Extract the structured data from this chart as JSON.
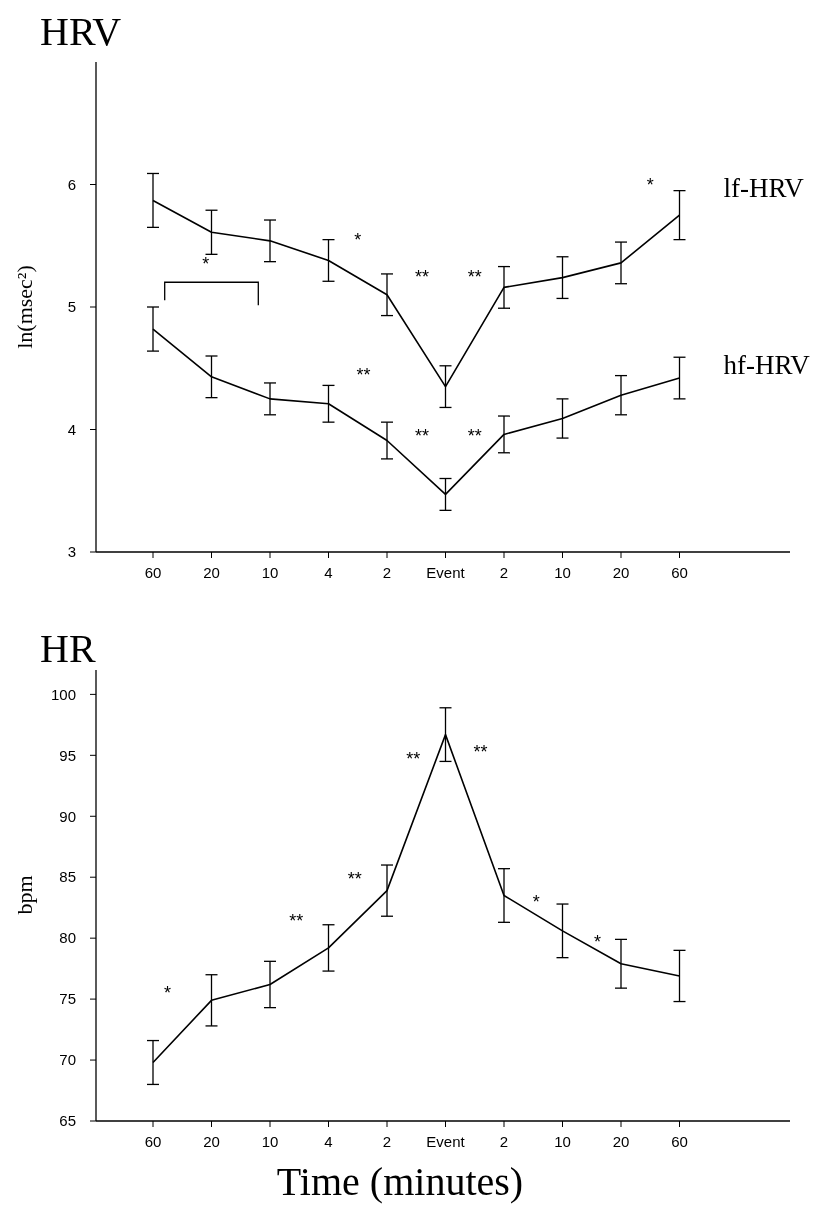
{
  "chart_data": [
    {
      "type": "line",
      "title": "HRV",
      "ylabel": "ln(msec²)",
      "categories": [
        "60",
        "20",
        "10",
        "4",
        "2",
        "Event",
        "2",
        "10",
        "20",
        "60"
      ],
      "ylim": [
        3,
        7
      ],
      "yticks": [
        3,
        4,
        5,
        6
      ],
      "grid": false,
      "marker": "none",
      "line_style": "solid",
      "series": [
        {
          "name": "lf-HRV",
          "color": "#000000",
          "values": [
            5.87,
            5.61,
            5.54,
            5.38,
            5.1,
            4.35,
            5.16,
            5.24,
            5.36,
            5.75
          ],
          "errors": [
            0.22,
            0.18,
            0.17,
            0.17,
            0.17,
            0.17,
            0.17,
            0.17,
            0.17,
            0.2
          ]
        },
        {
          "name": "hf-HRV",
          "color": "#000000",
          "values": [
            4.82,
            4.43,
            4.25,
            4.21,
            3.91,
            3.47,
            3.96,
            4.09,
            4.28,
            4.42
          ],
          "errors": [
            0.18,
            0.17,
            0.13,
            0.15,
            0.15,
            0.13,
            0.15,
            0.16,
            0.16,
            0.17
          ]
        }
      ],
      "annotations": [
        "*",
        "*",
        "**",
        "**",
        "*",
        "**",
        "**",
        "**"
      ]
    },
    {
      "type": "line",
      "title": "HR",
      "ylabel": "bpm",
      "xlabel": "Time (minutes)",
      "categories": [
        "60",
        "20",
        "10",
        "4",
        "2",
        "Event",
        "2",
        "10",
        "20",
        "60"
      ],
      "ylim": [
        65,
        102
      ],
      "yticks": [
        65,
        70,
        75,
        80,
        85,
        90,
        95,
        100
      ],
      "grid": false,
      "marker": "none",
      "line_style": "solid",
      "series": [
        {
          "color": "#000000",
          "values": [
            69.8,
            74.9,
            76.2,
            79.2,
            83.9,
            96.7,
            83.5,
            80.6,
            77.9,
            76.9
          ],
          "errors": [
            1.8,
            2.1,
            1.9,
            1.9,
            2.1,
            2.2,
            2.2,
            2.2,
            2,
            2.1
          ]
        }
      ],
      "annotations": [
        "*",
        "**",
        "**",
        "**",
        "**",
        "*",
        "*"
      ]
    }
  ]
}
